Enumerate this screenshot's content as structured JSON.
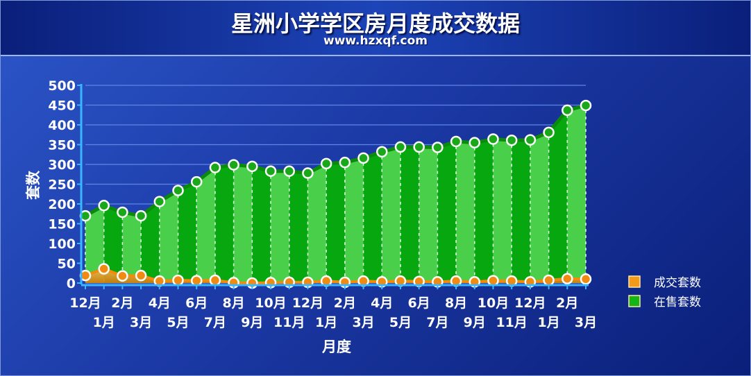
{
  "chart_data": {
    "type": "area",
    "title": "星洲小学学区房月度成交数据",
    "subtitle": "www.hzxqf.com",
    "xlabel": "月度",
    "ylabel": "套数",
    "ylim": [
      0,
      500
    ],
    "yticks": [
      0,
      50,
      100,
      150,
      200,
      250,
      300,
      350,
      400,
      450,
      500
    ],
    "grid": true,
    "legend_position": "right",
    "categories": [
      "12月",
      "1月",
      "2月",
      "3月",
      "4月",
      "5月",
      "6月",
      "7月",
      "8月",
      "9月",
      "10月",
      "11月",
      "12月",
      "1月",
      "2月",
      "3月",
      "4月",
      "5月",
      "6月",
      "7月",
      "8月",
      "9月",
      "10月",
      "11月",
      "12月",
      "1月",
      "2月",
      "3月"
    ],
    "series": [
      {
        "name": "成交套数",
        "color": "#f39a1a",
        "values": [
          19,
          36,
          18,
          19,
          5,
          7,
          6,
          7,
          1,
          0,
          1,
          2,
          2,
          5,
          2,
          5,
          3,
          5,
          4,
          3,
          5,
          3,
          6,
          5,
          3,
          7,
          11,
          10
        ]
      },
      {
        "name": "在售套数",
        "color": "#16b516",
        "values": [
          170,
          196,
          179,
          170,
          206,
          234,
          256,
          292,
          299,
          295,
          283,
          283,
          278,
          302,
          305,
          316,
          332,
          344,
          344,
          343,
          358,
          355,
          364,
          361,
          362,
          381,
          437,
          449
        ]
      }
    ]
  }
}
